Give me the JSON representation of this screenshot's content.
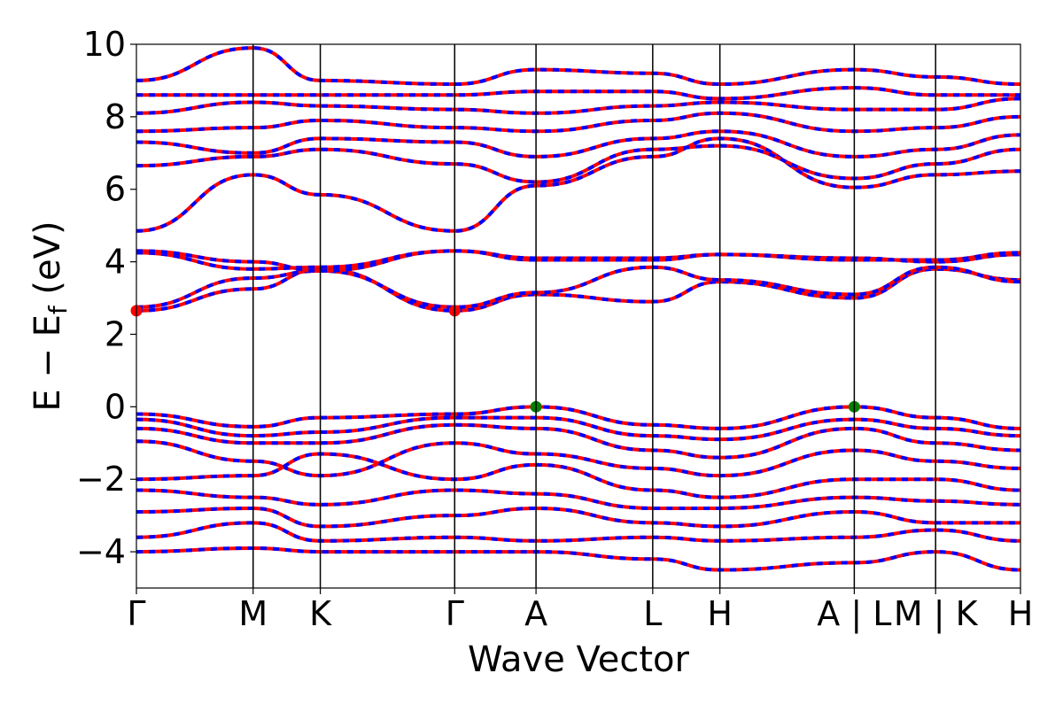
{
  "chart_data": {
    "type": "line",
    "title": "",
    "xlabel": "Wave Vector",
    "ylabel": "E − E",
    "ylabel_subscript": "f",
    "ylabel_unit": " (eV)",
    "ylim": [
      -5,
      10
    ],
    "yticks": [
      -4,
      -2,
      0,
      2,
      4,
      6,
      8,
      10
    ],
    "ytick_labels": [
      "−4",
      "−2",
      "0",
      "2",
      "4",
      "6",
      "8",
      "10"
    ],
    "x": [
      0,
      0.132,
      0.208,
      0.36,
      0.452,
      0.584,
      0.66,
      0.812,
      0.904,
      1.0
    ],
    "xtick_labels": [
      "Γ",
      "M",
      "K",
      "Γ",
      "A",
      "L",
      "H",
      "A | L",
      "M | K",
      "H"
    ],
    "grid": false,
    "legend": "none",
    "colors": {
      "spin_up": "#ff0000",
      "spin_down": "#0000ff",
      "cbm_marker": "#ff0000",
      "vbm_marker": "#008000",
      "high_symmetry_line": "#000000"
    },
    "band_extrema": [
      {
        "name": "CBM",
        "x": 0,
        "y": 2.65
      },
      {
        "name": "CBM",
        "x": 0.36,
        "y": 2.65
      },
      {
        "name": "VBM",
        "x": 0.452,
        "y": 0.0
      },
      {
        "name": "VBM",
        "x": 0.812,
        "y": 0.0
      }
    ],
    "series": [
      {
        "values": [
          2.65,
          3.25,
          3.8,
          2.65,
          3.1,
          2.9,
          3.45,
          3.0,
          3.8,
          3.5
        ]
      },
      {
        "values": [
          2.75,
          3.55,
          3.75,
          2.75,
          3.15,
          3.85,
          3.5,
          3.1,
          3.85,
          3.45
        ]
      },
      {
        "values": [
          4.25,
          3.8,
          3.85,
          4.3,
          4.1,
          4.1,
          4.2,
          4.1,
          4.0,
          4.2
        ]
      },
      {
        "values": [
          4.3,
          4.0,
          3.75,
          4.3,
          4.05,
          4.05,
          4.2,
          4.05,
          4.05,
          4.25
        ]
      },
      {
        "values": [
          4.85,
          6.4,
          5.85,
          4.85,
          6.1,
          6.9,
          7.4,
          6.05,
          6.4,
          6.5
        ]
      },
      {
        "values": [
          6.65,
          6.9,
          7.1,
          6.7,
          6.2,
          7.1,
          7.2,
          6.3,
          6.7,
          7.1
        ]
      },
      {
        "values": [
          7.3,
          7.0,
          7.4,
          7.3,
          6.9,
          7.4,
          7.6,
          6.9,
          7.1,
          7.5
        ]
      },
      {
        "values": [
          7.6,
          7.7,
          7.9,
          7.7,
          7.6,
          7.9,
          8.1,
          7.6,
          7.7,
          8.0
        ]
      },
      {
        "values": [
          8.1,
          8.4,
          8.3,
          8.2,
          8.1,
          8.3,
          8.4,
          8.2,
          8.2,
          8.5
        ]
      },
      {
        "values": [
          8.6,
          8.6,
          8.6,
          8.6,
          8.7,
          8.7,
          8.5,
          8.8,
          8.6,
          8.6
        ]
      },
      {
        "values": [
          9.0,
          9.9,
          9.0,
          8.9,
          9.3,
          9.2,
          8.9,
          9.3,
          9.1,
          8.9
        ]
      },
      {
        "values": [
          -0.2,
          -0.55,
          -0.3,
          -0.2,
          0.0,
          -0.5,
          -0.6,
          0.0,
          -0.3,
          -0.6
        ]
      },
      {
        "values": [
          -0.35,
          -0.8,
          -0.7,
          -0.3,
          -0.3,
          -0.8,
          -0.9,
          -0.35,
          -0.6,
          -0.8
        ]
      },
      {
        "values": [
          -0.6,
          -1.0,
          -1.0,
          -0.5,
          -0.6,
          -1.2,
          -1.4,
          -0.6,
          -1.0,
          -1.2
        ]
      },
      {
        "values": [
          -0.95,
          -1.5,
          -1.9,
          -1.0,
          -1.3,
          -1.7,
          -1.9,
          -1.2,
          -1.5,
          -1.7
        ]
      },
      {
        "values": [
          -2.0,
          -1.9,
          -1.3,
          -2.0,
          -1.6,
          -2.3,
          -2.5,
          -2.0,
          -2.0,
          -2.3
        ]
      },
      {
        "values": [
          -2.3,
          -2.5,
          -2.7,
          -2.3,
          -2.4,
          -2.8,
          -2.8,
          -2.5,
          -2.6,
          -2.7
        ]
      },
      {
        "values": [
          -2.9,
          -2.8,
          -3.3,
          -3.0,
          -2.8,
          -3.2,
          -3.3,
          -2.9,
          -3.2,
          -3.2
        ]
      },
      {
        "values": [
          -3.6,
          -3.2,
          -3.7,
          -3.6,
          -3.7,
          -3.6,
          -3.7,
          -3.6,
          -3.4,
          -3.7
        ]
      },
      {
        "values": [
          -4.0,
          -3.9,
          -4.0,
          -4.0,
          -4.0,
          -4.2,
          -4.5,
          -4.3,
          -4.0,
          -4.5
        ]
      }
    ]
  }
}
